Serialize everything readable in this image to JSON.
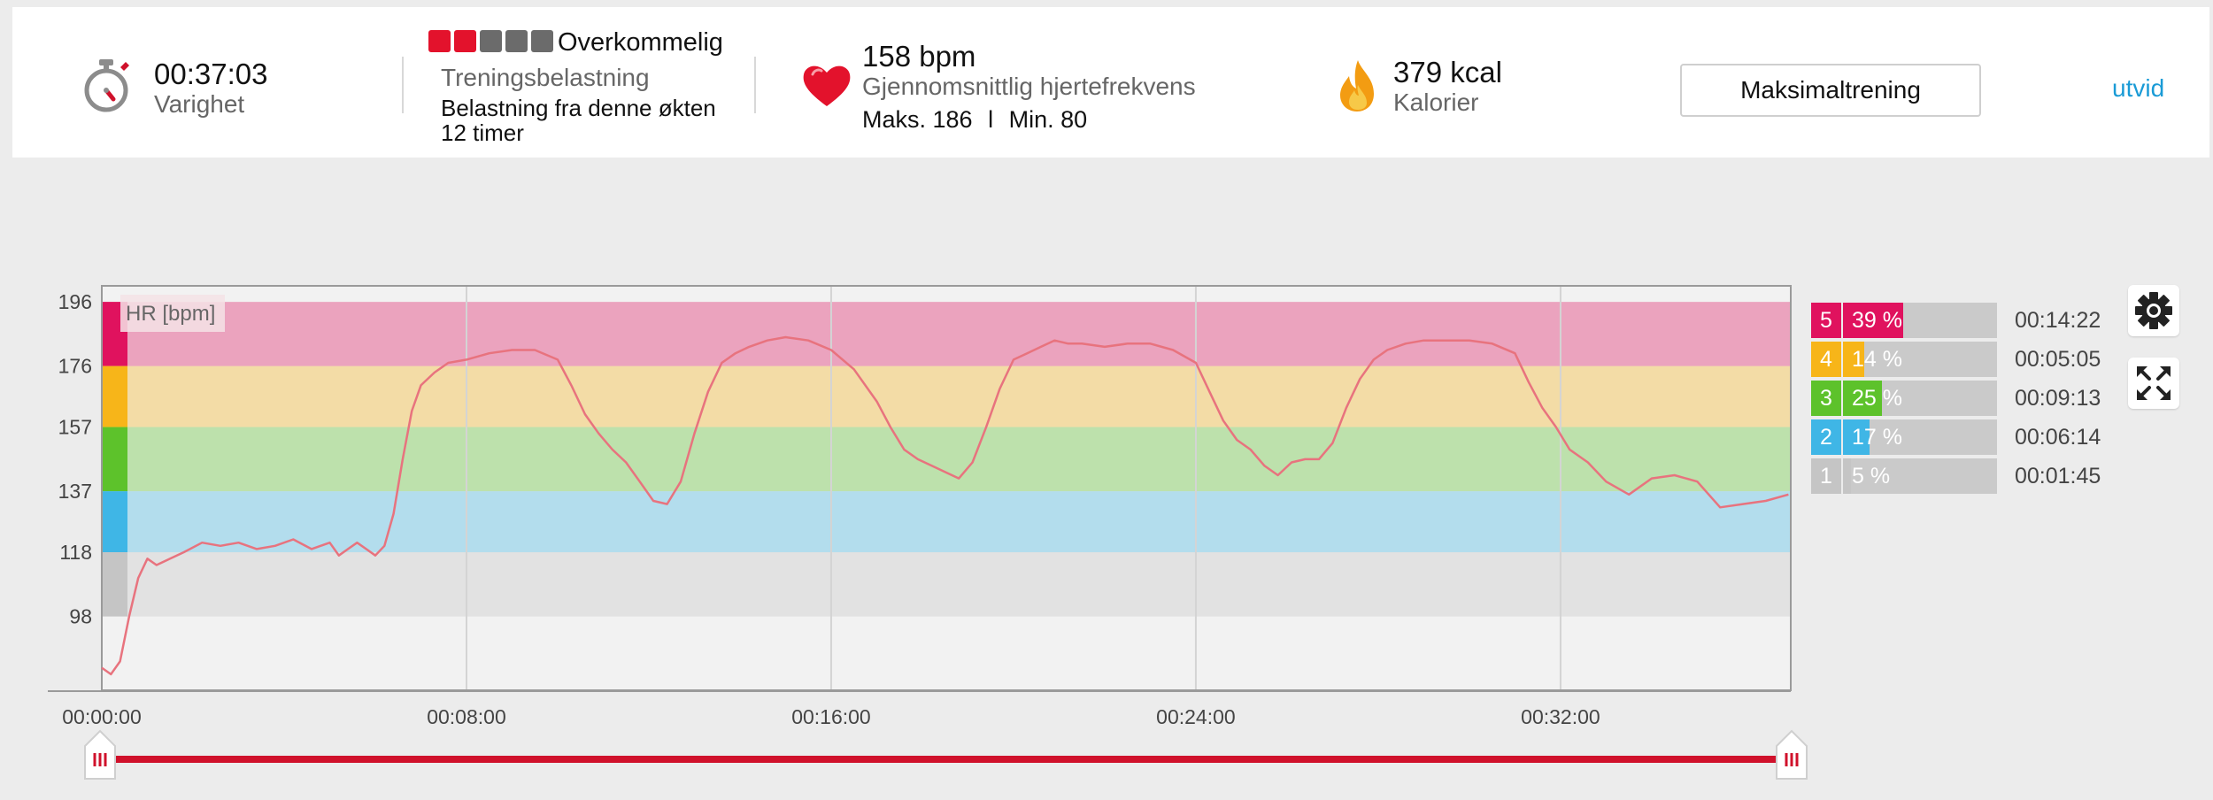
{
  "summary": {
    "duration": {
      "value": "00:37:03",
      "label": "Varighet",
      "icon": "stopwatch-icon"
    },
    "training_load": {
      "boxes_total": 5,
      "boxes_filled": 2,
      "rating": "Overkommelig",
      "label": "Treningsbelastning",
      "text": "Belastning fra denne økten",
      "time": "12 timer"
    },
    "heart_rate": {
      "value": "158 bpm",
      "label": "Gjennomsnittlig hjertefrekvens",
      "max": "Maks. 186",
      "separator": "l",
      "min": "Min. 80",
      "icon": "heart-icon"
    },
    "calories": {
      "value": "379 kcal",
      "label": "Kalorier",
      "icon": "flame-icon"
    },
    "max_button": "Maksimaltrening",
    "expand_link": "utvid"
  },
  "colors": {
    "accent_red": "#d0112b",
    "link_blue": "#1a9bd6",
    "zone5": "#e0125e",
    "zone4": "#f7b519",
    "zone3": "#5dc22b",
    "zone2": "#3fb6e6",
    "zone1": "#c5c5c5",
    "hr_line": "#e8737e"
  },
  "chart_data": {
    "type": "line",
    "series_label": "HR [bpm]",
    "y_ticks": [
      196,
      176,
      157,
      137,
      118,
      98
    ],
    "x_ticks": [
      "00:00:00",
      "00:08:00",
      "00:16:00",
      "00:24:00",
      "00:32:00"
    ],
    "ylim": [
      75,
      201
    ],
    "xlim_minutes": [
      0,
      37.05
    ],
    "grid": true,
    "zones": [
      {
        "zone": 5,
        "min": 176,
        "max": 196
      },
      {
        "zone": 4,
        "min": 157,
        "max": 176
      },
      {
        "zone": 3,
        "min": 137,
        "max": 157
      },
      {
        "zone": 2,
        "min": 118,
        "max": 137
      },
      {
        "zone": 1,
        "min": 98,
        "max": 118
      }
    ],
    "x_minutes": [
      0.0,
      0.2,
      0.4,
      0.6,
      0.8,
      1.0,
      1.2,
      1.5,
      1.8,
      2.2,
      2.6,
      3.0,
      3.4,
      3.8,
      4.2,
      4.6,
      5.0,
      5.2,
      5.4,
      5.6,
      5.8,
      6.0,
      6.2,
      6.4,
      6.6,
      6.8,
      7.0,
      7.3,
      7.6,
      8.0,
      8.5,
      9.0,
      9.5,
      10.0,
      10.3,
      10.6,
      10.9,
      11.2,
      11.5,
      11.8,
      12.1,
      12.4,
      12.7,
      13.0,
      13.3,
      13.6,
      13.9,
      14.2,
      14.6,
      15.0,
      15.5,
      16.0,
      16.5,
      17.0,
      17.3,
      17.6,
      17.9,
      18.2,
      18.5,
      18.8,
      19.1,
      19.4,
      19.7,
      20.0,
      20.3,
      20.6,
      20.9,
      21.2,
      21.5,
      22.0,
      22.5,
      23.0,
      23.5,
      24.0,
      24.3,
      24.6,
      24.9,
      25.2,
      25.5,
      25.8,
      26.1,
      26.4,
      26.7,
      27.0,
      27.3,
      27.6,
      27.9,
      28.2,
      28.6,
      29.0,
      29.5,
      30.0,
      30.5,
      31.0,
      31.3,
      31.6,
      31.9,
      32.2,
      32.6,
      33.0,
      33.5,
      34.0,
      34.5,
      35.0,
      35.5,
      36.0,
      36.5,
      37.0
    ],
    "hr_bpm": [
      82,
      80,
      84,
      98,
      110,
      116,
      114,
      116,
      118,
      121,
      120,
      121,
      119,
      120,
      122,
      119,
      121,
      117,
      119,
      121,
      119,
      117,
      120,
      130,
      147,
      162,
      170,
      174,
      177,
      178,
      180,
      181,
      181,
      178,
      170,
      161,
      155,
      150,
      146,
      140,
      134,
      133,
      140,
      155,
      168,
      177,
      180,
      182,
      184,
      185,
      184,
      181,
      175,
      165,
      157,
      150,
      147,
      145,
      143,
      141,
      146,
      157,
      169,
      178,
      180,
      182,
      184,
      183,
      183,
      182,
      183,
      183,
      181,
      177,
      168,
      159,
      153,
      150,
      145,
      142,
      146,
      147,
      147,
      152,
      163,
      172,
      178,
      181,
      183,
      184,
      184,
      184,
      183,
      180,
      171,
      163,
      157,
      150,
      146,
      140,
      136,
      141,
      142,
      140,
      132,
      133,
      134,
      136
    ]
  },
  "zone_stats": [
    {
      "zone": "5",
      "percent": 39,
      "percent_label": "39 %",
      "time": "00:14:22"
    },
    {
      "zone": "4",
      "percent": 14,
      "percent_label": "14 %",
      "time": "00:05:05"
    },
    {
      "zone": "3",
      "percent": 25,
      "percent_label": "25 %",
      "time": "00:09:13"
    },
    {
      "zone": "2",
      "percent": 17,
      "percent_label": "17 %",
      "time": "00:06:14"
    },
    {
      "zone": "1",
      "percent": 5,
      "percent_label": "5 %",
      "time": "00:01:45"
    }
  ],
  "tools": {
    "settings_icon": "gear-icon",
    "fullscreen_icon": "expand-arrows-icon"
  }
}
